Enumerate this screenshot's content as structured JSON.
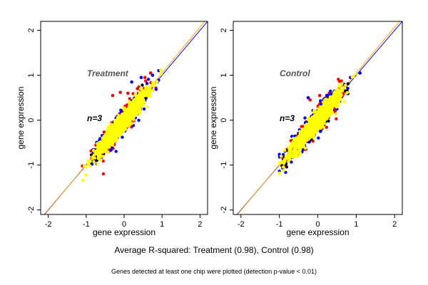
{
  "chart_data": [
    {
      "type": "scatter",
      "title": "Treatment",
      "annotation": "n=3",
      "xlabel": "gene expression",
      "ylabel": "gene expression",
      "xlim": [
        -2.2,
        2.2
      ],
      "ylim": [
        -2.1,
        2.2
      ],
      "xticks": [
        -2,
        -1,
        0,
        1,
        2
      ],
      "yticks": [
        -2,
        -1,
        0,
        1,
        2
      ],
      "grid": false,
      "reference_lines": [
        {
          "color": "#0000ff",
          "slope": 1,
          "intercept": 0
        },
        {
          "color": "#ffa500",
          "slope": 1.02,
          "intercept": 0.03
        }
      ],
      "series": [
        {
          "color": "#ff0000",
          "approx_x_range": [
            -1.1,
            1.2
          ],
          "spread": 0.14,
          "outliers": [
            [
              -0.3,
              0.55
            ],
            [
              -0.1,
              0.62
            ],
            [
              0.1,
              0.6
            ],
            [
              0.35,
              0.7
            ],
            [
              0.55,
              0.95
            ],
            [
              0.2,
              -0.15
            ],
            [
              -0.6,
              -0.55
            ],
            [
              -0.9,
              -0.95
            ],
            [
              0.45,
              0.3
            ],
            [
              0.7,
              1.05
            ]
          ]
        },
        {
          "color": "#0000ff",
          "approx_x_range": [
            -1.1,
            1.2
          ],
          "spread": 0.12,
          "outliers": [
            [
              0.2,
              0.85
            ],
            [
              0.3,
              0.4
            ],
            [
              0.45,
              0.95
            ],
            [
              0.5,
              0.35
            ],
            [
              -0.35,
              -0.2
            ],
            [
              -0.6,
              -0.85
            ],
            [
              0.75,
              1.0
            ]
          ]
        },
        {
          "color": "#000000",
          "approx_x_range": [
            -1.1,
            1.2
          ],
          "spread": 0.08,
          "outliers": []
        },
        {
          "color": "#ffff00",
          "approx_x_range": [
            -1.1,
            1.25
          ],
          "spread": 0.1,
          "outliers": []
        }
      ]
    },
    {
      "type": "scatter",
      "title": "Control",
      "annotation": "n=3",
      "xlabel": "gene expression",
      "ylabel": "gene expression",
      "xlim": [
        -2.2,
        2.2
      ],
      "ylim": [
        -2.1,
        2.2
      ],
      "xticks": [
        -2,
        -1,
        0,
        1,
        2
      ],
      "yticks": [
        -2,
        -1,
        0,
        1,
        2
      ],
      "grid": false,
      "reference_lines": [
        {
          "color": "#0000ff",
          "slope": 1,
          "intercept": 0
        },
        {
          "color": "#ffa500",
          "slope": 1.02,
          "intercept": 0.03
        }
      ],
      "series": [
        {
          "color": "#ff0000",
          "approx_x_range": [
            -1.0,
            1.2
          ],
          "spread": 0.12,
          "outliers": [
            [
              -0.2,
              0.45
            ],
            [
              0.05,
              0.55
            ],
            [
              0.3,
              0.6
            ],
            [
              0.6,
              0.75
            ],
            [
              0.45,
              0.2
            ],
            [
              -0.5,
              -0.75
            ],
            [
              -0.8,
              -0.65
            ]
          ]
        },
        {
          "color": "#0000ff",
          "approx_x_range": [
            -1.0,
            1.2
          ],
          "spread": 0.12,
          "outliers": [
            [
              -0.25,
              0.5
            ],
            [
              0.15,
              0.45
            ],
            [
              0.4,
              0.35
            ],
            [
              0.5,
              0.25
            ],
            [
              -0.65,
              -0.55
            ],
            [
              0.85,
              0.95
            ],
            [
              1.1,
              1.05
            ]
          ]
        },
        {
          "color": "#000000",
          "approx_x_range": [
            -1.0,
            1.2
          ],
          "spread": 0.08,
          "outliers": []
        },
        {
          "color": "#ffff00",
          "approx_x_range": [
            -1.0,
            1.25
          ],
          "spread": 0.1,
          "outliers": []
        }
      ]
    }
  ],
  "captions": {
    "summary": "Average R-squared: Treatment (0.98), Control (0.98)",
    "footnote": "Genes detected at least one chip were plotted (detection p-value < 0.01)"
  }
}
